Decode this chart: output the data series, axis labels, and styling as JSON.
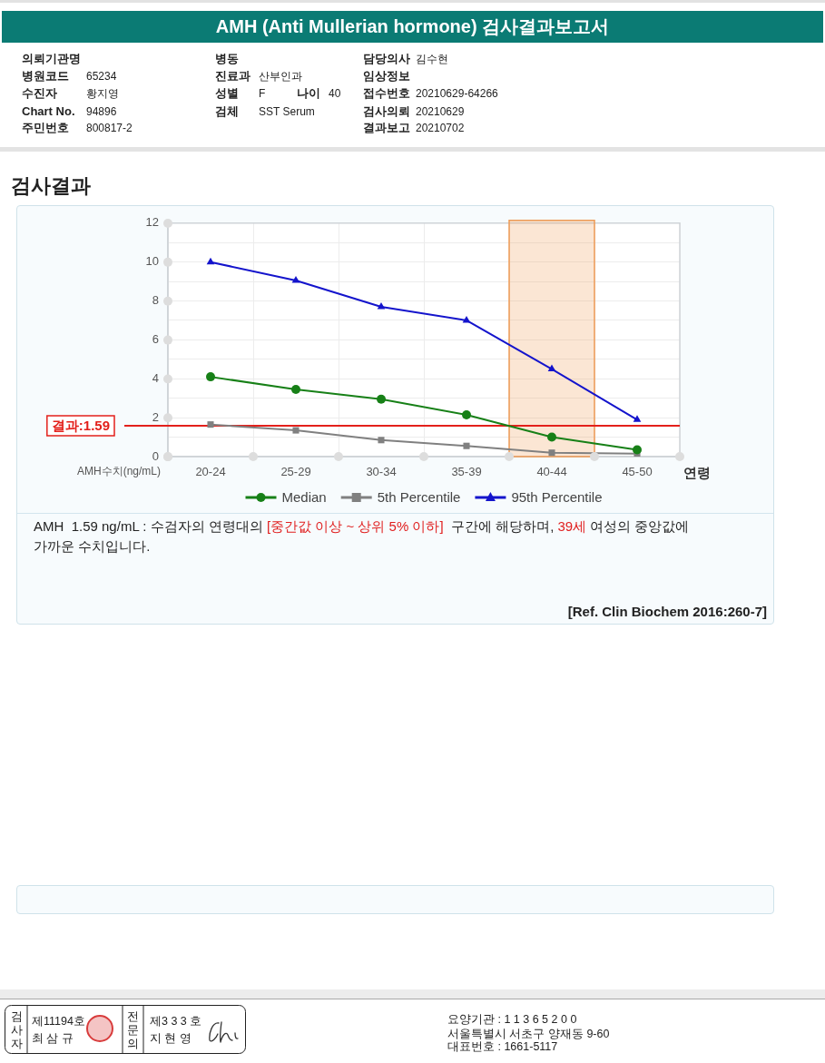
{
  "chart_data": {
    "type": "line",
    "title": "AMH (Anti Mullerian hormone) 검사결과보고서",
    "subtitle": "검사결과",
    "xlabel": "연령",
    "ylabel": "AMH수치(ng/mL)",
    "categories": [
      "20-24",
      "25-29",
      "30-34",
      "35-39",
      "40-44",
      "45-50"
    ],
    "series": [
      {
        "name": "Median",
        "color": "#178017",
        "marker": "circle",
        "values": [
          4.1,
          3.45,
          2.95,
          2.15,
          1.0,
          0.35
        ]
      },
      {
        "name": "5th Percentile",
        "color": "#808080",
        "marker": "square",
        "values": [
          1.65,
          1.35,
          0.85,
          0.55,
          0.2,
          0.15
        ]
      },
      {
        "name": "95th Percentile",
        "color": "#1414cc",
        "marker": "triangle",
        "values": [
          10.0,
          9.05,
          7.7,
          7.0,
          4.5,
          1.9
        ]
      }
    ],
    "ylim": [
      0,
      12
    ],
    "yticks": [
      0,
      {
        "value": 1,
        "label": null
      },
      2,
      {
        "value": 3,
        "label": null
      },
      4,
      {
        "value": 5,
        "label": null
      },
      6,
      {
        "value": 7,
        "label": null
      },
      8,
      {
        "value": 9,
        "label": null
      },
      10,
      {
        "value": 11,
        "label": null
      },
      12
    ],
    "grid": true,
    "legend": "bottom",
    "ref_lines": [
      {
        "axis": "y",
        "value": 1.59,
        "label": "결과:1.59",
        "color": "#e3201b"
      }
    ],
    "bands": [
      {
        "axis": "x",
        "from": "40-44",
        "to": "40-44",
        "color": "#ee9a55"
      }
    ],
    "annotations": [
      "의뢰기관명",
      "병동",
      "담당의사",
      "김수현",
      "병원코드",
      "65234",
      "진료과",
      "산부인과",
      "임상정보",
      "수진자",
      "황지영",
      "성별",
      "F",
      "나이",
      "40",
      "접수번호",
      "20210629-64266",
      "Chart No.",
      "94896",
      "검체",
      "SST Serum",
      "검사의뢰",
      "20210629",
      "주민번호",
      "800817-2",
      "결과보고",
      "20210702",
      "AMH  1.59 ng/mL : 수검자의 연령대의 ",
      "[중간값 이상 ~ 상위 5% 이하]",
      "  구간에 해당하며, ",
      "39세",
      " 여성의 중앙값에",
      "가까운 수치입니다.",
      "[Ref. Clin Biochem 2016:260-7]",
      "검사자",
      "제11194호",
      "최 삼 규",
      "전문의",
      "제3 3 3 호",
      "지 현 영",
      "요양기관 : 1 1 3 6 5 2 0 0",
      "서울특별시 서초구 양재동 9-60",
      "대표번호 : 1661-5117"
    ]
  }
}
